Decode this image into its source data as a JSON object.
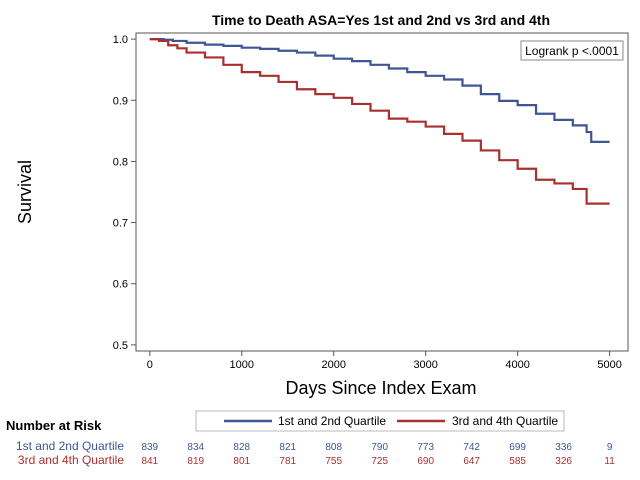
{
  "chart_data": {
    "type": "line",
    "title": "Time to Death ASA=Yes 1st and 2nd vs 3rd and 4th",
    "xlabel": "Days Since Index Exam",
    "ylabel": "Survival",
    "xlim": [
      -150,
      5200
    ],
    "ylim": [
      0.49,
      1.01
    ],
    "xticks": [
      0,
      1000,
      2000,
      3000,
      4000,
      5000
    ],
    "yticks": [
      0.5,
      0.6,
      0.7,
      0.8,
      0.9,
      1.0
    ],
    "ytick_labels": [
      "0.5",
      "0.6",
      "0.7",
      "0.8",
      "0.9",
      "1.0"
    ],
    "annotation": "Logrank p <.0001",
    "legend_position": "bottom",
    "series": [
      {
        "name": "1st and 2nd Quartile",
        "color": "#3f5597",
        "x": [
          0,
          150,
          250,
          400,
          600,
          800,
          1000,
          1200,
          1400,
          1600,
          1800,
          2000,
          2200,
          2400,
          2600,
          2800,
          3000,
          3200,
          3400,
          3600,
          3800,
          4000,
          4200,
          4400,
          4600,
          4750,
          4800,
          5000
        ],
        "y": [
          1.0,
          0.999,
          0.997,
          0.994,
          0.991,
          0.989,
          0.986,
          0.984,
          0.981,
          0.978,
          0.973,
          0.968,
          0.964,
          0.958,
          0.952,
          0.946,
          0.94,
          0.934,
          0.924,
          0.91,
          0.899,
          0.892,
          0.878,
          0.868,
          0.859,
          0.848,
          0.832,
          0.832
        ]
      },
      {
        "name": "3rd and 4th Quartile",
        "color": "#a9302f",
        "x": [
          0,
          100,
          200,
          300,
          400,
          600,
          800,
          1000,
          1200,
          1400,
          1600,
          1800,
          2000,
          2200,
          2400,
          2600,
          2800,
          3000,
          3200,
          3400,
          3600,
          3800,
          4000,
          4200,
          4400,
          4600,
          4700,
          4750,
          5000
        ],
        "y": [
          1.0,
          0.997,
          0.99,
          0.985,
          0.978,
          0.97,
          0.958,
          0.946,
          0.94,
          0.93,
          0.918,
          0.91,
          0.904,
          0.894,
          0.883,
          0.87,
          0.865,
          0.857,
          0.845,
          0.834,
          0.818,
          0.802,
          0.788,
          0.77,
          0.764,
          0.755,
          0.755,
          0.731,
          0.731
        ]
      }
    ],
    "number_at_risk": {
      "title": "Number at Risk",
      "rows": [
        {
          "label": "1st and 2nd Quartile",
          "color": "#3f5597",
          "values": [
            "839",
            "834",
            "828",
            "821",
            "808",
            "790",
            "773",
            "742",
            "699",
            "336",
            "9"
          ]
        },
        {
          "label": "3rd and 4th Quartile",
          "color": "#a9302f",
          "values": [
            "841",
            "819",
            "801",
            "781",
            "755",
            "725",
            "690",
            "647",
            "585",
            "326",
            "11"
          ]
        }
      ]
    }
  }
}
